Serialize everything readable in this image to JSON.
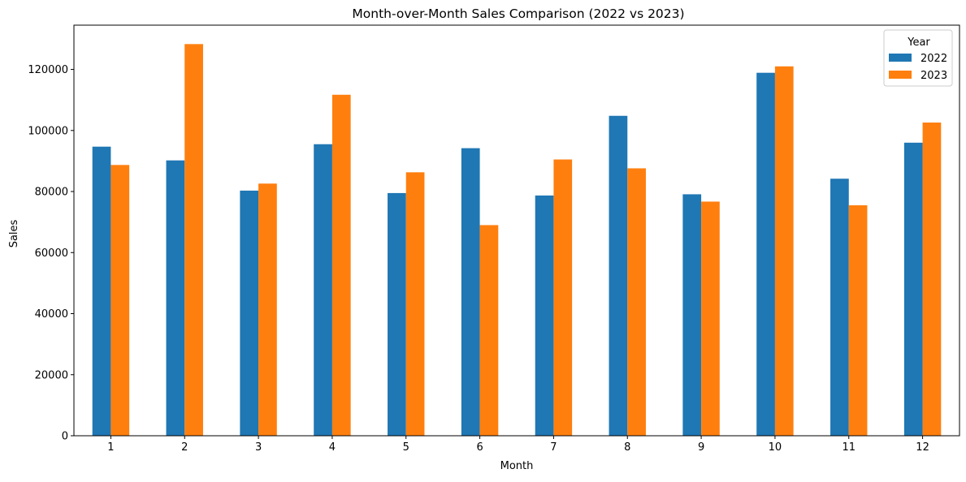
{
  "chart_data": {
    "type": "bar",
    "title": "Month-over-Month Sales Comparison (2022 vs 2023)",
    "xlabel": "Month",
    "ylabel": "Sales",
    "categories": [
      "1",
      "2",
      "3",
      "4",
      "5",
      "6",
      "7",
      "8",
      "9",
      "10",
      "11",
      "12"
    ],
    "ylim": [
      0,
      134500
    ],
    "yticks": [
      0,
      20000,
      40000,
      60000,
      80000,
      100000,
      120000
    ],
    "ytick_labels": [
      "0",
      "20000",
      "40000",
      "60000",
      "80000",
      "100000",
      "120000"
    ],
    "grid": false,
    "legend": {
      "title": "Year",
      "position": "top-right"
    },
    "series": [
      {
        "name": "2022",
        "color": "#1f77b4",
        "values": [
          94700,
          90200,
          80300,
          95500,
          79500,
          94200,
          78700,
          104800,
          79100,
          118900,
          84200,
          96000
        ]
      },
      {
        "name": "2023",
        "color": "#ff7f0e",
        "values": [
          88700,
          128300,
          82600,
          111700,
          86300,
          69000,
          90500,
          87600,
          76700,
          121000,
          75500,
          102600
        ]
      }
    ]
  }
}
